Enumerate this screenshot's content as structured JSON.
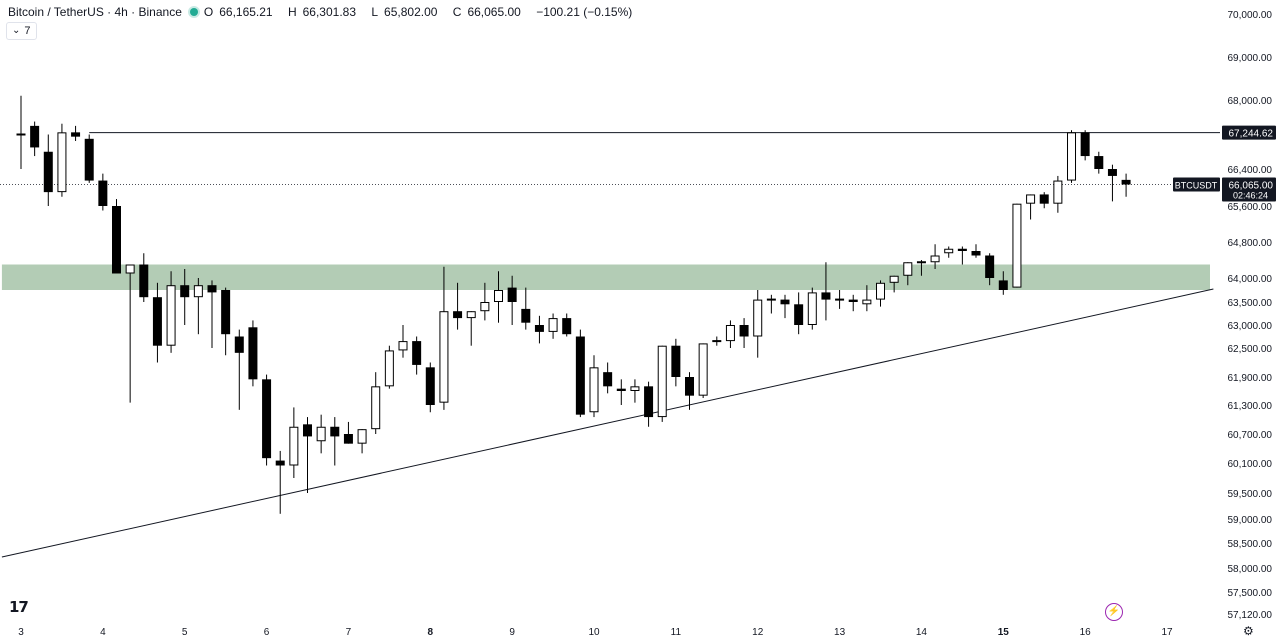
{
  "header": {
    "symbol": "Bitcoin / TetherUS · 4h · Binance",
    "o_label": "O",
    "o_value": "66,165.21",
    "h_label": "H",
    "h_value": "66,301.83",
    "l_label": "L",
    "l_value": "65,802.00",
    "c_label": "C",
    "c_value": "66,065.00",
    "change": "−100.21 (−0.15%)",
    "status_color": "#22ab94"
  },
  "indicators_toggle": {
    "icon": "chevron-down-icon",
    "count": "7"
  },
  "branding": {
    "logo_text": "17"
  },
  "chart_data": {
    "type": "candlestick",
    "title": "",
    "y_axis_ticks": [
      {
        "value": 70000,
        "label": "70,000.00"
      },
      {
        "value": 69000,
        "label": "69,000.00"
      },
      {
        "value": 68000,
        "label": "68,000.00"
      },
      {
        "value": 66400,
        "label": "66,400.00"
      },
      {
        "value": 65600,
        "label": "65,600.00"
      },
      {
        "value": 64800,
        "label": "64,800.00"
      },
      {
        "value": 64000,
        "label": "64,000.00"
      },
      {
        "value": 63500,
        "label": "63,500.00"
      },
      {
        "value": 63000,
        "label": "63,000.00"
      },
      {
        "value": 62500,
        "label": "62,500.00"
      },
      {
        "value": 61900,
        "label": "61,900.00"
      },
      {
        "value": 61300,
        "label": "61,300.00"
      },
      {
        "value": 60700,
        "label": "60,700.00"
      },
      {
        "value": 60100,
        "label": "60,100.00"
      },
      {
        "value": 59500,
        "label": "59,500.00"
      },
      {
        "value": 59000,
        "label": "59,000.00"
      },
      {
        "value": 58500,
        "label": "58,500.00"
      },
      {
        "value": 58000,
        "label": "58,000.00"
      },
      {
        "value": 57500,
        "label": "57,500.00"
      },
      {
        "value": 57120,
        "label": "57,120.00"
      }
    ],
    "x_axis_ticks": [
      {
        "bar": 0,
        "label": "3",
        "bold": false
      },
      {
        "bar": 6,
        "label": "4",
        "bold": false
      },
      {
        "bar": 12,
        "label": "5",
        "bold": false
      },
      {
        "bar": 18,
        "label": "6",
        "bold": false
      },
      {
        "bar": 24,
        "label": "7",
        "bold": false
      },
      {
        "bar": 30,
        "label": "8",
        "bold": true
      },
      {
        "bar": 36,
        "label": "9",
        "bold": false
      },
      {
        "bar": 42,
        "label": "10",
        "bold": false
      },
      {
        "bar": 48,
        "label": "11",
        "bold": false
      },
      {
        "bar": 54,
        "label": "12",
        "bold": false
      },
      {
        "bar": 60,
        "label": "13",
        "bold": false
      },
      {
        "bar": 66,
        "label": "14",
        "bold": false
      },
      {
        "bar": 72,
        "label": "15",
        "bold": true
      },
      {
        "bar": 78,
        "label": "16",
        "bold": false
      },
      {
        "bar": 84,
        "label": "17",
        "bold": false
      }
    ],
    "candles": [
      {
        "o": 67200,
        "h": 68100,
        "l": 66400,
        "c": 67200
      },
      {
        "o": 67400,
        "h": 67500,
        "l": 66700,
        "c": 66900
      },
      {
        "o": 66800,
        "h": 67200,
        "l": 65600,
        "c": 65900
      },
      {
        "o": 65900,
        "h": 67450,
        "l": 65800,
        "c": 67250
      },
      {
        "o": 67250,
        "h": 67400,
        "l": 67050,
        "c": 67150
      },
      {
        "o": 67100,
        "h": 67200,
        "l": 66100,
        "c": 66150
      },
      {
        "o": 66150,
        "h": 66300,
        "l": 65500,
        "c": 65600
      },
      {
        "o": 65600,
        "h": 65750,
        "l": 64100,
        "c": 64100
      },
      {
        "o": 64100,
        "h": 64300,
        "l": 61350,
        "c": 64300
      },
      {
        "o": 64300,
        "h": 64550,
        "l": 63500,
        "c": 63600
      },
      {
        "o": 63600,
        "h": 63900,
        "l": 62200,
        "c": 62550
      },
      {
        "o": 62550,
        "h": 64150,
        "l": 62400,
        "c": 63850
      },
      {
        "o": 63850,
        "h": 64200,
        "l": 63000,
        "c": 63600
      },
      {
        "o": 63600,
        "h": 64000,
        "l": 62800,
        "c": 63850
      },
      {
        "o": 63850,
        "h": 63950,
        "l": 62500,
        "c": 63700
      },
      {
        "o": 63750,
        "h": 63800,
        "l": 62350,
        "c": 62800
      },
      {
        "o": 62750,
        "h": 62900,
        "l": 61200,
        "c": 62400
      },
      {
        "o": 62950,
        "h": 63100,
        "l": 61700,
        "c": 61850
      },
      {
        "o": 61850,
        "h": 61950,
        "l": 60050,
        "c": 60200
      },
      {
        "o": 60150,
        "h": 60350,
        "l": 59100,
        "c": 60050
      },
      {
        "o": 60050,
        "h": 61250,
        "l": 59800,
        "c": 60850
      },
      {
        "o": 60900,
        "h": 61050,
        "l": 59500,
        "c": 60650
      },
      {
        "o": 60550,
        "h": 61100,
        "l": 60300,
        "c": 60850
      },
      {
        "o": 60850,
        "h": 61050,
        "l": 60050,
        "c": 60650
      },
      {
        "o": 60700,
        "h": 60950,
        "l": 60500,
        "c": 60500
      },
      {
        "o": 60500,
        "h": 60800,
        "l": 60300,
        "c": 60800
      },
      {
        "o": 60800,
        "h": 62000,
        "l": 60700,
        "c": 61700
      },
      {
        "o": 61700,
        "h": 62550,
        "l": 61650,
        "c": 62450
      },
      {
        "o": 62450,
        "h": 63000,
        "l": 62300,
        "c": 62650
      },
      {
        "o": 62650,
        "h": 62750,
        "l": 61950,
        "c": 62150
      },
      {
        "o": 62100,
        "h": 62200,
        "l": 61150,
        "c": 61300
      },
      {
        "o": 61350,
        "h": 64250,
        "l": 61200,
        "c": 63300
      },
      {
        "o": 63300,
        "h": 63900,
        "l": 62900,
        "c": 63150
      },
      {
        "o": 63150,
        "h": 63300,
        "l": 62550,
        "c": 63300
      },
      {
        "o": 63300,
        "h": 63900,
        "l": 63100,
        "c": 63500
      },
      {
        "o": 63500,
        "h": 64150,
        "l": 63050,
        "c": 63750
      },
      {
        "o": 63800,
        "h": 64050,
        "l": 63000,
        "c": 63500
      },
      {
        "o": 63350,
        "h": 63800,
        "l": 62900,
        "c": 63050
      },
      {
        "o": 63000,
        "h": 63200,
        "l": 62600,
        "c": 62850
      },
      {
        "o": 62850,
        "h": 63250,
        "l": 62700,
        "c": 63150
      },
      {
        "o": 63150,
        "h": 63250,
        "l": 62750,
        "c": 62800
      },
      {
        "o": 62750,
        "h": 62900,
        "l": 61050,
        "c": 61100
      },
      {
        "o": 61150,
        "h": 62350,
        "l": 61050,
        "c": 62100
      },
      {
        "o": 62000,
        "h": 62200,
        "l": 61550,
        "c": 61700
      },
      {
        "o": 61650,
        "h": 61850,
        "l": 61300,
        "c": 61600
      },
      {
        "o": 61600,
        "h": 61850,
        "l": 61350,
        "c": 61700
      },
      {
        "o": 61700,
        "h": 61800,
        "l": 60850,
        "c": 61050
      },
      {
        "o": 61050,
        "h": 62550,
        "l": 60950,
        "c": 62550
      },
      {
        "o": 62550,
        "h": 62700,
        "l": 61700,
        "c": 61900
      },
      {
        "o": 61900,
        "h": 62000,
        "l": 61200,
        "c": 61500
      },
      {
        "o": 61500,
        "h": 62600,
        "l": 61450,
        "c": 62600
      },
      {
        "o": 62650,
        "h": 62750,
        "l": 62550,
        "c": 62650
      },
      {
        "o": 62650,
        "h": 63100,
        "l": 62500,
        "c": 63000
      },
      {
        "o": 63000,
        "h": 63150,
        "l": 62500,
        "c": 62750
      },
      {
        "o": 62750,
        "h": 63750,
        "l": 62300,
        "c": 63550
      },
      {
        "o": 63550,
        "h": 63650,
        "l": 63250,
        "c": 63550
      },
      {
        "o": 63550,
        "h": 63650,
        "l": 63150,
        "c": 63450
      },
      {
        "o": 63450,
        "h": 63700,
        "l": 62800,
        "c": 63000
      },
      {
        "o": 63000,
        "h": 63800,
        "l": 62900,
        "c": 63700
      },
      {
        "o": 63700,
        "h": 64350,
        "l": 63100,
        "c": 63550
      },
      {
        "o": 63550,
        "h": 63750,
        "l": 63350,
        "c": 63550
      },
      {
        "o": 63550,
        "h": 63650,
        "l": 63300,
        "c": 63500
      },
      {
        "o": 63450,
        "h": 63850,
        "l": 63300,
        "c": 63550
      },
      {
        "o": 63550,
        "h": 63950,
        "l": 63400,
        "c": 63900
      },
      {
        "o": 63900,
        "h": 64050,
        "l": 63700,
        "c": 64050
      },
      {
        "o": 64050,
        "h": 64350,
        "l": 63850,
        "c": 64350
      },
      {
        "o": 64350,
        "h": 64400,
        "l": 64050,
        "c": 64350
      },
      {
        "o": 64350,
        "h": 64750,
        "l": 64200,
        "c": 64500
      },
      {
        "o": 64550,
        "h": 64700,
        "l": 64450,
        "c": 64650
      },
      {
        "o": 64650,
        "h": 64700,
        "l": 64300,
        "c": 64600
      },
      {
        "o": 64600,
        "h": 64750,
        "l": 64450,
        "c": 64500
      },
      {
        "o": 64500,
        "h": 64550,
        "l": 63850,
        "c": 64000
      },
      {
        "o": 63950,
        "h": 64150,
        "l": 63650,
        "c": 63750
      },
      {
        "o": 63800,
        "h": 65650,
        "l": 63800,
        "c": 65650
      },
      {
        "o": 65650,
        "h": 65850,
        "l": 65300,
        "c": 65850
      },
      {
        "o": 65850,
        "h": 65900,
        "l": 65550,
        "c": 65650
      },
      {
        "o": 65650,
        "h": 66250,
        "l": 65450,
        "c": 66150
      },
      {
        "o": 66150,
        "h": 67300,
        "l": 66100,
        "c": 67250
      },
      {
        "o": 67250,
        "h": 67300,
        "l": 66600,
        "c": 66700
      },
      {
        "o": 66700,
        "h": 66800,
        "l": 66300,
        "c": 66400
      },
      {
        "o": 66400,
        "h": 66500,
        "l": 65700,
        "c": 66250
      },
      {
        "o": 66165,
        "h": 66300,
        "l": 65800,
        "c": 66065
      }
    ],
    "horizontal_line": {
      "value": 67244.62,
      "label": "67,244.62",
      "start_bar": 5
    },
    "support_zone": {
      "top": 64300,
      "bottom": 63750,
      "start_bar": -1.4,
      "color": "#b3ccb5"
    },
    "trendline": {
      "bar1": -1.4,
      "value1": 58220,
      "bar2": 87.4,
      "value2": 63770
    },
    "last_price": {
      "value": 66065,
      "symbol_tag": "BTCUSDT",
      "price_label": "66,065.00",
      "countdown": "02:46:24"
    },
    "colors": {
      "up_fill": "#ffffff",
      "down_fill": "#000000",
      "outline": "#000000",
      "line": "#131722"
    },
    "grid": false
  }
}
